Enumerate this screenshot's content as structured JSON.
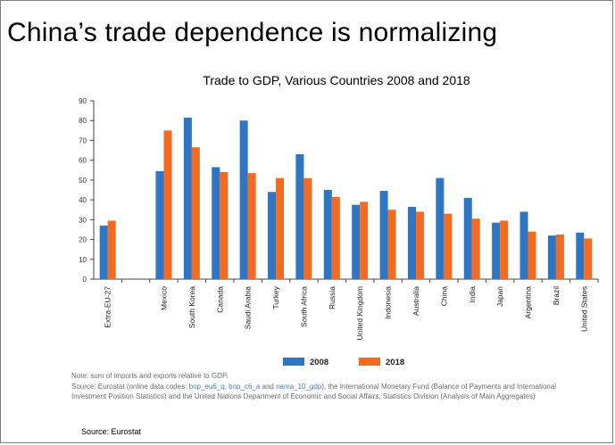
{
  "slide": {
    "title": "China’s trade dependence is normalizing",
    "footer_source": "Source: Eurostat"
  },
  "chart_data": {
    "type": "bar",
    "title": "Trade to GDP, Various Countries 2008 and 2018",
    "xlabel": "",
    "ylabel": "",
    "ylim": [
      0,
      90
    ],
    "yticks": [
      0,
      10,
      20,
      30,
      40,
      50,
      60,
      70,
      80,
      90
    ],
    "categories": [
      "Extra-EU-27",
      "",
      "Mexico",
      "South Korea",
      "Canada",
      "Saudi Arabia",
      "Turkey",
      "South Africa",
      "Russia",
      "United Kingdom",
      "Indonesia",
      "Australia",
      "China",
      "India",
      "Japan",
      "Argentina",
      "Brazil",
      "United States"
    ],
    "series": [
      {
        "name": "2008",
        "color": "#2e75c4",
        "values": [
          27,
          null,
          54.5,
          81.5,
          56.5,
          80,
          44,
          63,
          45,
          37.5,
          44.5,
          36.5,
          51,
          41,
          28.5,
          34,
          22,
          23.5
        ]
      },
      {
        "name": "2018",
        "color": "#f36a21",
        "values": [
          29.5,
          null,
          75,
          66.5,
          54,
          53.5,
          51,
          51,
          41.5,
          39,
          35,
          34,
          33,
          30.5,
          29.5,
          24,
          22.5,
          20.5
        ]
      }
    ],
    "legend_position": "bottom-center",
    "grid": false
  },
  "notes": {
    "note": "Note: sum of imports and exports relative to GDP.",
    "source_prefix": "Source: Eurostat (online data codes: ",
    "code1": "bop_eu6_q",
    "sep1": ", ",
    "code2": "bop_c6_a",
    "sep2": " and ",
    "code3": "nama_10_gdp",
    "source_suffix": "), the International Monetary Fund (Balance of Payments and International Investment Position Statistics) and the United Nations Department of Economic and Social Affairs, Statistics Division (Analysis of Main Aggregates)"
  }
}
